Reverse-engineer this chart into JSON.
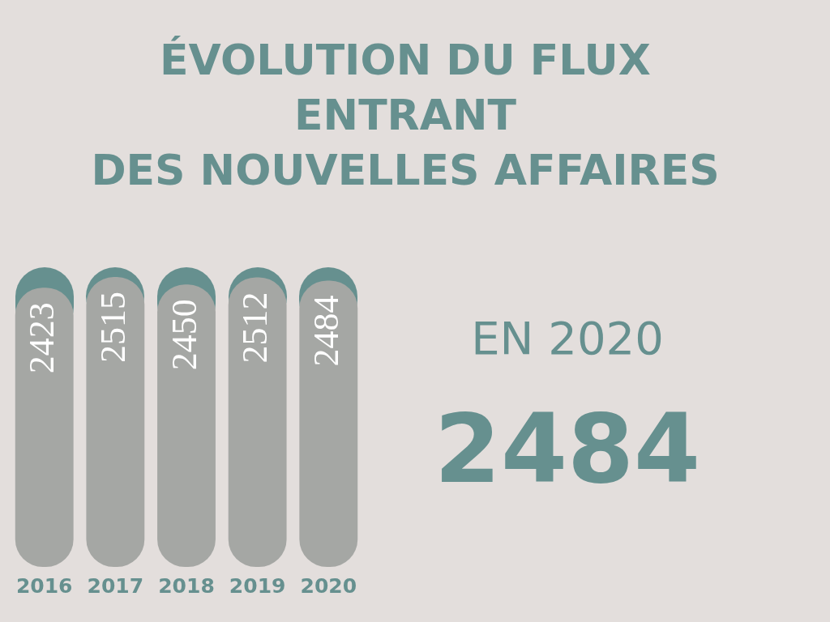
{
  "chart_data": {
    "type": "bar",
    "title": "ÉVOLUTION DU FLUX\nENTRANT\nDES NOUVELLES AFFAIRES",
    "categories": [
      "2016",
      "2017",
      "2018",
      "2019",
      "2020"
    ],
    "values": [
      2423,
      2515,
      2450,
      2512,
      2484
    ],
    "color": "#a5a7a4",
    "ylim": [
      0,
      2600
    ],
    "tick_labels": "x",
    "grid": false,
    "legend": false,
    "data_labels": true,
    "annotations": [
      "EN 2020",
      "2484"
    ]
  }
}
